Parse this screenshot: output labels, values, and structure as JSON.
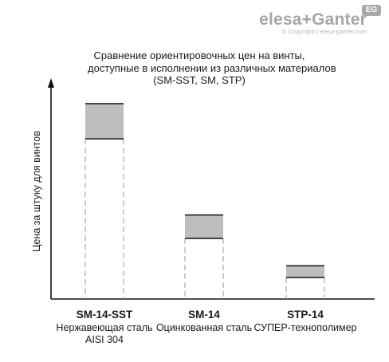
{
  "logo": {
    "brand": "elesa+Ganter",
    "badge": "EG",
    "copyright": "© Copyright | elesa-ganter.com"
  },
  "chart_data": {
    "type": "bar",
    "title": "Сравнение ориентировочных цен на винты, доступные в исполнении из различных материалов (SM-SST, SM, STP)",
    "title_lines": [
      "Сравнение ориентировочных цен на винты,",
      "доступные в исполнении из различных материалов",
      "(SM-SST, SM, STP)"
    ],
    "ylabel": "Цена за штуку для винтов",
    "xlabel": "",
    "ylim": [
      0,
      100
    ],
    "grid": false,
    "axis_ticks": false,
    "categories": [
      {
        "code": "SM-14-SST",
        "lines": [
          "Нержавеющая сталь",
          "AISI 304"
        ]
      },
      {
        "code": "SM-14",
        "lines": [
          "Оцинкованная сталь"
        ]
      },
      {
        "code": "STP-14",
        "lines": [
          "СУПЕР-технополимер"
        ]
      }
    ],
    "ranges": [
      {
        "low": 82,
        "high": 100
      },
      {
        "low": 31,
        "high": 43
      },
      {
        "low": 11,
        "high": 17
      }
    ],
    "colors": {
      "range_fill": "#bdbdbd",
      "range_edge": "#111111",
      "dashed": "#9a9a9a",
      "axis": "#111111"
    }
  }
}
